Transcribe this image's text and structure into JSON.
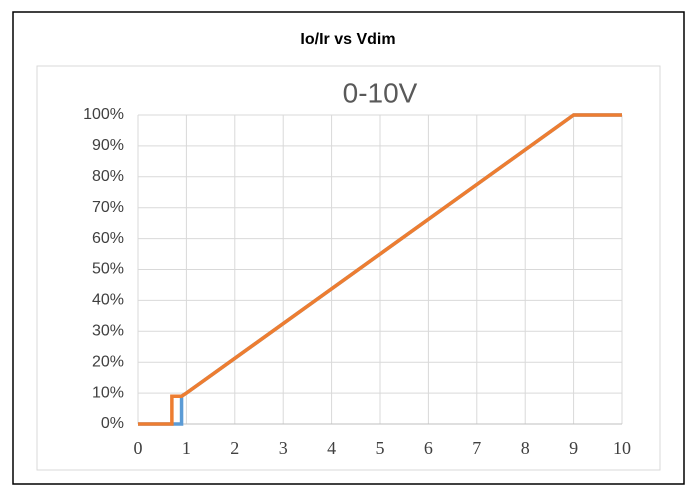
{
  "chart_data": {
    "type": "line",
    "title": "Io/Ir vs Vdim",
    "subtitle": "0-10V",
    "series": [
      {
        "color": "#5b9bd5",
        "x": [
          0,
          0.9,
          0.9,
          1,
          9,
          10
        ],
        "values": [
          0,
          0,
          9,
          10,
          100,
          100
        ]
      },
      {
        "color": "#ed7d31",
        "x": [
          0,
          0.7,
          0.7,
          0.9,
          1,
          9,
          10
        ],
        "values": [
          0,
          0,
          9,
          9,
          10,
          100,
          100
        ]
      }
    ],
    "xlim": [
      0,
      10
    ],
    "xticks": [
      0,
      1,
      2,
      3,
      4,
      5,
      6,
      7,
      8,
      9,
      10
    ],
    "ylim": [
      0,
      100
    ],
    "yticks": [
      {
        "value": 0,
        "label": "0%"
      },
      {
        "value": 10,
        "label": "10%"
      },
      {
        "value": 20,
        "label": "20%"
      },
      {
        "value": 30,
        "label": "30%"
      },
      {
        "value": 40,
        "label": "40%"
      },
      {
        "value": 50,
        "label": "50%"
      },
      {
        "value": 60,
        "label": "60%"
      },
      {
        "value": 70,
        "label": "70%"
      },
      {
        "value": 80,
        "label": "80%"
      },
      {
        "value": 90,
        "label": "90%"
      },
      {
        "value": 100,
        "label": "100%"
      }
    ],
    "grid": true
  }
}
